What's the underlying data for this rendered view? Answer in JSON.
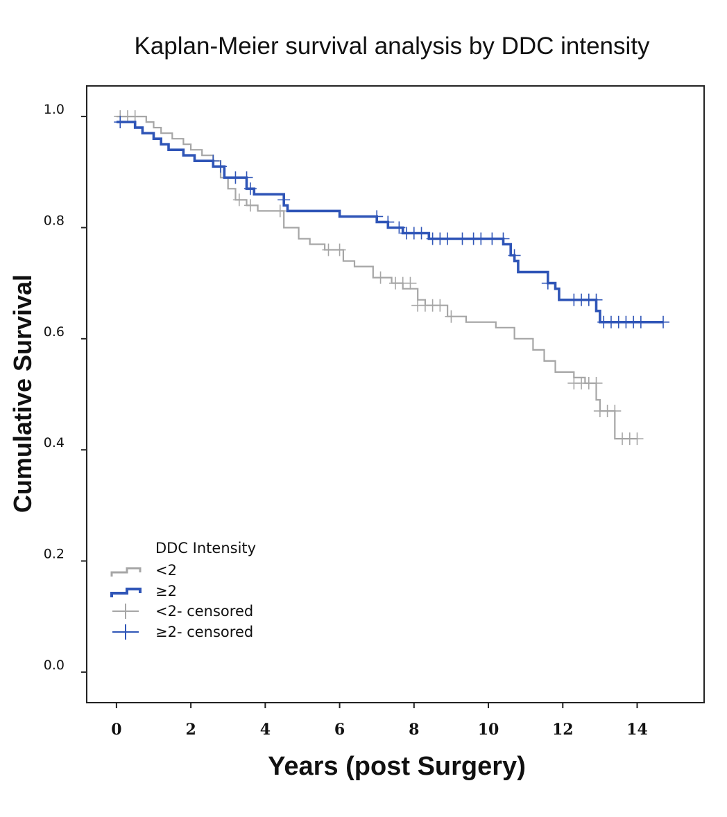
{
  "chart_data": {
    "type": "line",
    "title": "Kaplan-Meier survival analysis by DDC intensity",
    "xlabel": "Years (post Surgery)",
    "ylabel": "Cumulative Survival",
    "xlim": [
      -0.8,
      15.8
    ],
    "ylim": [
      -0.055,
      1.055
    ],
    "xticks": [
      "0",
      "2",
      "4",
      "6",
      "8",
      "10",
      "12",
      "14"
    ],
    "yticks": [
      "0.0",
      "0.2",
      "0.4",
      "0.6",
      "0.8",
      "1.0"
    ],
    "legend": {
      "title": "DDC Intensity",
      "position": "bottom-left",
      "entries": [
        "<2",
        "≥2",
        "<2- censored",
        "≥2- censored"
      ]
    },
    "series": [
      {
        "name": "<2",
        "color": "#a6a6a6",
        "steps": [
          [
            0,
            1.0
          ],
          [
            0.8,
            0.99
          ],
          [
            1.0,
            0.98
          ],
          [
            1.2,
            0.97
          ],
          [
            1.5,
            0.96
          ],
          [
            1.8,
            0.95
          ],
          [
            2.0,
            0.94
          ],
          [
            2.3,
            0.93
          ],
          [
            2.6,
            0.92
          ],
          [
            2.8,
            0.89
          ],
          [
            3.0,
            0.87
          ],
          [
            3.2,
            0.85
          ],
          [
            3.5,
            0.84
          ],
          [
            3.8,
            0.83
          ],
          [
            4.5,
            0.8
          ],
          [
            4.9,
            0.78
          ],
          [
            5.2,
            0.77
          ],
          [
            5.6,
            0.76
          ],
          [
            6.1,
            0.74
          ],
          [
            6.4,
            0.73
          ],
          [
            6.9,
            0.71
          ],
          [
            7.4,
            0.7
          ],
          [
            7.7,
            0.69
          ],
          [
            8.1,
            0.67
          ],
          [
            8.3,
            0.66
          ],
          [
            8.9,
            0.64
          ],
          [
            9.4,
            0.63
          ],
          [
            10.2,
            0.62
          ],
          [
            10.7,
            0.6
          ],
          [
            11.2,
            0.58
          ],
          [
            11.5,
            0.56
          ],
          [
            11.8,
            0.54
          ],
          [
            12.3,
            0.53
          ],
          [
            12.6,
            0.52
          ],
          [
            12.9,
            0.49
          ],
          [
            13.0,
            0.47
          ],
          [
            13.4,
            0.42
          ],
          [
            14.0,
            0.42
          ]
        ],
        "censored": [
          [
            0.1,
            1.0
          ],
          [
            0.3,
            1.0
          ],
          [
            0.5,
            1.0
          ],
          [
            3.3,
            0.85
          ],
          [
            3.6,
            0.84
          ],
          [
            4.4,
            0.83
          ],
          [
            5.7,
            0.76
          ],
          [
            6.0,
            0.76
          ],
          [
            7.1,
            0.71
          ],
          [
            7.5,
            0.7
          ],
          [
            7.7,
            0.7
          ],
          [
            7.9,
            0.7
          ],
          [
            8.1,
            0.66
          ],
          [
            8.3,
            0.66
          ],
          [
            8.5,
            0.66
          ],
          [
            8.7,
            0.66
          ],
          [
            9.0,
            0.64
          ],
          [
            12.3,
            0.52
          ],
          [
            12.5,
            0.52
          ],
          [
            12.7,
            0.52
          ],
          [
            12.9,
            0.52
          ],
          [
            13.0,
            0.47
          ],
          [
            13.2,
            0.47
          ],
          [
            13.4,
            0.47
          ],
          [
            13.6,
            0.42
          ],
          [
            13.8,
            0.42
          ],
          [
            14.0,
            0.42
          ]
        ]
      },
      {
        "name": "≥2",
        "color": "#2f55b7",
        "steps": [
          [
            0,
            0.99
          ],
          [
            0.5,
            0.98
          ],
          [
            0.7,
            0.97
          ],
          [
            1.0,
            0.96
          ],
          [
            1.2,
            0.95
          ],
          [
            1.4,
            0.94
          ],
          [
            1.8,
            0.93
          ],
          [
            2.1,
            0.92
          ],
          [
            2.6,
            0.91
          ],
          [
            2.9,
            0.89
          ],
          [
            3.5,
            0.87
          ],
          [
            3.7,
            0.86
          ],
          [
            4.5,
            0.84
          ],
          [
            4.6,
            0.83
          ],
          [
            6.0,
            0.82
          ],
          [
            7.0,
            0.81
          ],
          [
            7.3,
            0.8
          ],
          [
            7.7,
            0.79
          ],
          [
            8.4,
            0.78
          ],
          [
            10.4,
            0.77
          ],
          [
            10.6,
            0.75
          ],
          [
            10.7,
            0.74
          ],
          [
            10.8,
            0.72
          ],
          [
            11.6,
            0.7
          ],
          [
            11.8,
            0.69
          ],
          [
            11.9,
            0.67
          ],
          [
            12.9,
            0.65
          ],
          [
            13.0,
            0.63
          ],
          [
            14.7,
            0.63
          ]
        ],
        "censored": [
          [
            0.1,
            0.99
          ],
          [
            2.6,
            0.92
          ],
          [
            2.8,
            0.91
          ],
          [
            3.2,
            0.89
          ],
          [
            3.5,
            0.89
          ],
          [
            3.6,
            0.87
          ],
          [
            4.5,
            0.85
          ],
          [
            7.0,
            0.82
          ],
          [
            7.3,
            0.81
          ],
          [
            7.6,
            0.8
          ],
          [
            7.8,
            0.79
          ],
          [
            8.0,
            0.79
          ],
          [
            8.2,
            0.79
          ],
          [
            8.5,
            0.78
          ],
          [
            8.7,
            0.78
          ],
          [
            8.9,
            0.78
          ],
          [
            9.3,
            0.78
          ],
          [
            9.6,
            0.78
          ],
          [
            9.8,
            0.78
          ],
          [
            10.1,
            0.78
          ],
          [
            10.4,
            0.78
          ],
          [
            10.7,
            0.75
          ],
          [
            11.6,
            0.7
          ],
          [
            12.3,
            0.67
          ],
          [
            12.5,
            0.67
          ],
          [
            12.7,
            0.67
          ],
          [
            12.9,
            0.67
          ],
          [
            13.1,
            0.63
          ],
          [
            13.3,
            0.63
          ],
          [
            13.5,
            0.63
          ],
          [
            13.7,
            0.63
          ],
          [
            13.9,
            0.63
          ],
          [
            14.1,
            0.63
          ],
          [
            14.7,
            0.63
          ]
        ]
      }
    ]
  }
}
